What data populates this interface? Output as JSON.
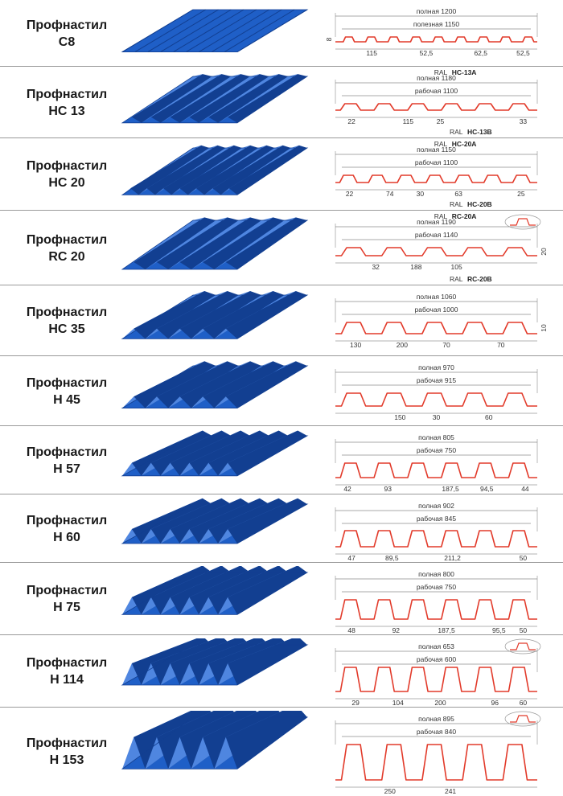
{
  "colors": {
    "sheet": "#1f5fc7",
    "sheet_dark": "#123f91",
    "sheet_light": "#4f86e0",
    "profile": "#e23a2a",
    "dim": "#333333"
  },
  "rows": [
    {
      "title": "Профнастил",
      "model": "С8",
      "full": "полная 1200",
      "work": "полезная 1150",
      "dims": [
        "115",
        "52,5",
        "62,5",
        "52,5"
      ],
      "height": "8",
      "ral": []
    },
    {
      "title": "Профнастил",
      "model": "НС 13",
      "full": "полная 1180",
      "work": "рабочая 1100",
      "dims": [
        "22",
        "115",
        "25",
        "33"
      ],
      "height": "",
      "ral": [
        "RAL",
        "НС-13А",
        "RAL",
        "НС-13В"
      ]
    },
    {
      "title": "Профнастил",
      "model": "НС 20",
      "full": "полная 1150",
      "work": "рабочая 1100",
      "dims": [
        "22",
        "74",
        "30",
        "63",
        "25"
      ],
      "height": "",
      "ral": [
        "RAL",
        "НС-20А",
        "RAL",
        "НС-20В"
      ]
    },
    {
      "title": "Профнастил",
      "model": "RC 20",
      "full": "полная 1190",
      "work": "рабочая 1140",
      "dims": [
        "32",
        "188",
        "105"
      ],
      "height": "20",
      "ral": [
        "RAL",
        "RC-20A",
        "RAL",
        "RC-20B"
      ]
    },
    {
      "title": "Профнастил",
      "model": "НС 35",
      "full": "полная 1060",
      "work": "рабочая 1000",
      "dims": [
        "130",
        "200",
        "70",
        "70"
      ],
      "height": "10",
      "ral": []
    },
    {
      "title": "Профнастил",
      "model": "Н 45",
      "full": "полная 970",
      "work": "рабочая 915",
      "dims": [
        "150",
        "30",
        "60"
      ],
      "height": "",
      "ral": []
    },
    {
      "title": "Профнастил",
      "model": "Н 57",
      "full": "полная 805",
      "work": "рабочая 750",
      "dims": [
        "42",
        "93",
        "187,5",
        "94,5",
        "44"
      ],
      "height": "",
      "ral": []
    },
    {
      "title": "Профнастил",
      "model": "Н 60",
      "full": "полная 902",
      "work": "рабочая 845",
      "dims": [
        "47",
        "89,5",
        "211,2",
        "50"
      ],
      "height": "",
      "ral": []
    },
    {
      "title": "Профнастил",
      "model": "Н 75",
      "full": "полная 800",
      "work": "рабочая 750",
      "dims": [
        "48",
        "92",
        "187,5",
        "95,5",
        "50"
      ],
      "height": "",
      "ral": []
    },
    {
      "title": "Профнастил",
      "model": "Н 114",
      "full": "полная 653",
      "work": "рабочая 600",
      "dims": [
        "29",
        "104",
        "200",
        "96",
        "60"
      ],
      "height": "",
      "ral": []
    },
    {
      "title": "Профнастил",
      "model": "Н 153",
      "full": "полная 895",
      "work": "рабочая 840",
      "dims": [
        "250",
        "241"
      ],
      "height": "",
      "ral": []
    }
  ]
}
